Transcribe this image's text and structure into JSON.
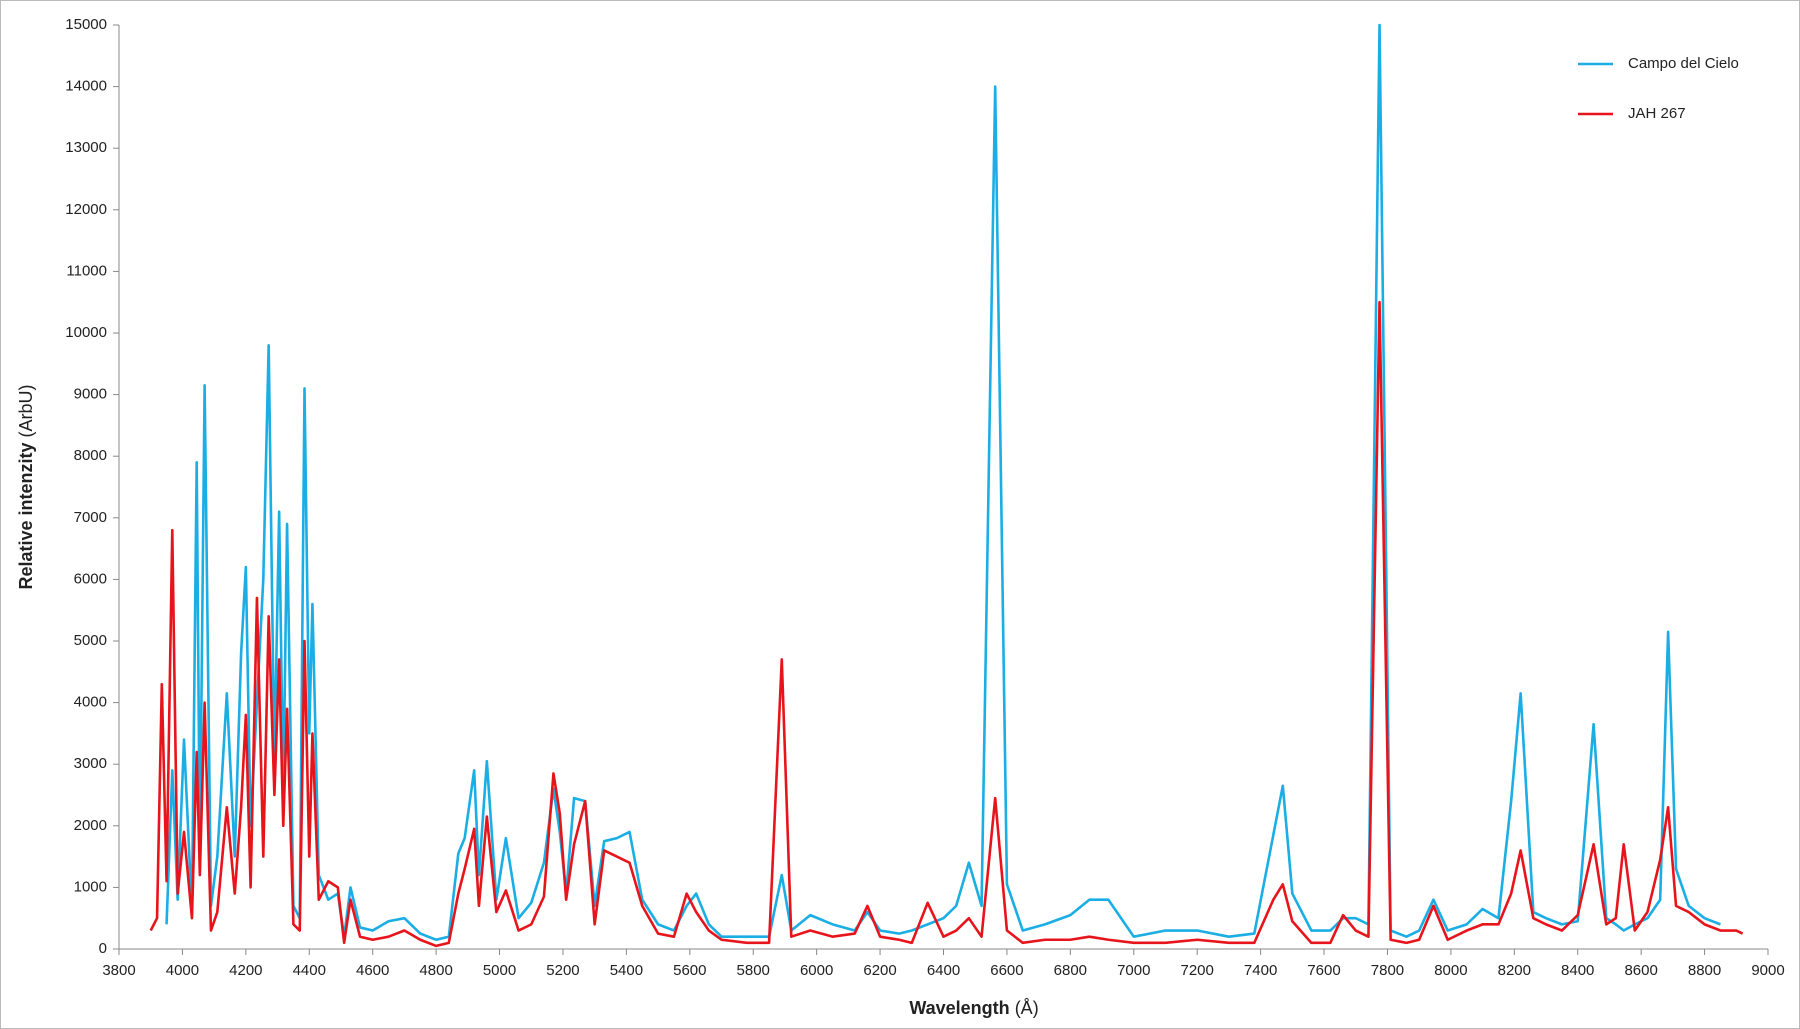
{
  "chart_data": {
    "type": "line",
    "x_label": "Wavelength",
    "x_label_unit": "(Å)",
    "y_label": "Relative intenzity",
    "y_label_unit": "(ArbU)",
    "x": [
      3900,
      3920,
      3935,
      3950,
      3968,
      3985,
      4005,
      4030,
      4045,
      4055,
      4070,
      4090,
      4110,
      4140,
      4165,
      4185,
      4200,
      4215,
      4235,
      4255,
      4272,
      4290,
      4305,
      4318,
      4330,
      4350,
      4370,
      4385,
      4400,
      4410,
      4430,
      4460,
      4490,
      4510,
      4530,
      4560,
      4600,
      4650,
      4700,
      4750,
      4800,
      4840,
      4870,
      4890,
      4920,
      4935,
      4960,
      4990,
      5020,
      5060,
      5100,
      5140,
      5170,
      5190,
      5210,
      5235,
      5270,
      5300,
      5330,
      5370,
      5410,
      5450,
      5500,
      5550,
      5590,
      5620,
      5660,
      5700,
      5780,
      5850,
      5890,
      5920,
      5980,
      6050,
      6120,
      6160,
      6200,
      6260,
      6300,
      6350,
      6400,
      6440,
      6480,
      6520,
      6563,
      6600,
      6650,
      6720,
      6800,
      6860,
      6920,
      7000,
      7100,
      7200,
      7300,
      7380,
      7440,
      7470,
      7500,
      7560,
      7620,
      7660,
      7700,
      7740,
      7775,
      7810,
      7860,
      7900,
      7945,
      7990,
      8050,
      8100,
      8150,
      8190,
      8220,
      8260,
      8300,
      8350,
      8400,
      8450,
      8490,
      8520,
      8545,
      8580,
      8620,
      8660,
      8685,
      8710,
      8750,
      8800,
      8850,
      8900,
      8920
    ],
    "series": [
      {
        "name": "Campo del Cielo",
        "color": "#1aaee5",
        "values": [
          null,
          null,
          null,
          400,
          2900,
          800,
          3400,
          600,
          7900,
          1500,
          9150,
          700,
          1500,
          4150,
          1500,
          4800,
          6200,
          2000,
          4000,
          6000,
          9800,
          3000,
          7100,
          2500,
          6900,
          700,
          500,
          9100,
          3500,
          5600,
          1200,
          800,
          900,
          200,
          1000,
          350,
          300,
          450,
          500,
          250,
          150,
          200,
          1550,
          1800,
          2900,
          1200,
          3050,
          800,
          1800,
          500,
          750,
          1400,
          2600,
          1900,
          900,
          2450,
          2400,
          700,
          1750,
          1800,
          1900,
          800,
          400,
          300,
          700,
          900,
          400,
          200,
          200,
          200,
          1200,
          300,
          550,
          400,
          300,
          600,
          300,
          250,
          300,
          400,
          500,
          700,
          1400,
          700,
          14000,
          1050,
          300,
          400,
          550,
          800,
          800,
          200,
          300,
          300,
          200,
          250,
          1850,
          2650,
          900,
          300,
          300,
          500,
          500,
          400,
          15000,
          300,
          200,
          300,
          800,
          300,
          400,
          650,
          500,
          2400,
          4150,
          600,
          500,
          400,
          450,
          3650,
          500,
          400,
          300,
          400,
          500,
          800,
          5150,
          1300,
          700,
          500,
          400,
          null,
          null
        ]
      },
      {
        "name": "JAH 267",
        "color": "#e8141b",
        "values": [
          300,
          500,
          4300,
          1100,
          6800,
          900,
          1900,
          500,
          3200,
          1200,
          4000,
          300,
          600,
          2300,
          900,
          2300,
          3800,
          1000,
          5700,
          1500,
          5400,
          2500,
          4700,
          2000,
          3900,
          400,
          300,
          5000,
          1500,
          3500,
          800,
          1100,
          1000,
          100,
          800,
          200,
          150,
          200,
          300,
          150,
          50,
          100,
          900,
          1300,
          1950,
          700,
          2150,
          600,
          950,
          300,
          400,
          850,
          2850,
          2200,
          800,
          1700,
          2400,
          400,
          1600,
          1500,
          1400,
          700,
          250,
          200,
          900,
          600,
          300,
          150,
          100,
          100,
          4700,
          200,
          300,
          200,
          250,
          700,
          200,
          150,
          100,
          750,
          200,
          300,
          500,
          200,
          2450,
          300,
          100,
          150,
          150,
          200,
          150,
          100,
          100,
          150,
          100,
          100,
          800,
          1050,
          450,
          100,
          100,
          550,
          300,
          200,
          10500,
          150,
          100,
          150,
          700,
          150,
          300,
          400,
          400,
          900,
          1600,
          500,
          400,
          300,
          550,
          1700,
          400,
          500,
          1700,
          300,
          600,
          1450,
          2300,
          700,
          600,
          400,
          300,
          300,
          250
        ]
      }
    ],
    "xlim": [
      3800,
      9000
    ],
    "xticks": [
      3800,
      4000,
      4200,
      4400,
      4600,
      4800,
      5000,
      5200,
      5400,
      5600,
      5800,
      6000,
      6200,
      6400,
      6600,
      6800,
      7000,
      7200,
      7400,
      7600,
      7800,
      8000,
      8200,
      8400,
      8600,
      8800,
      9000
    ],
    "ylim": [
      0,
      15000
    ],
    "yticks": [
      0,
      1000,
      2000,
      3000,
      4000,
      5000,
      6000,
      7000,
      8000,
      9000,
      10000,
      11000,
      12000,
      13000,
      14000,
      15000
    ],
    "grid": false,
    "legend": "top-right"
  }
}
